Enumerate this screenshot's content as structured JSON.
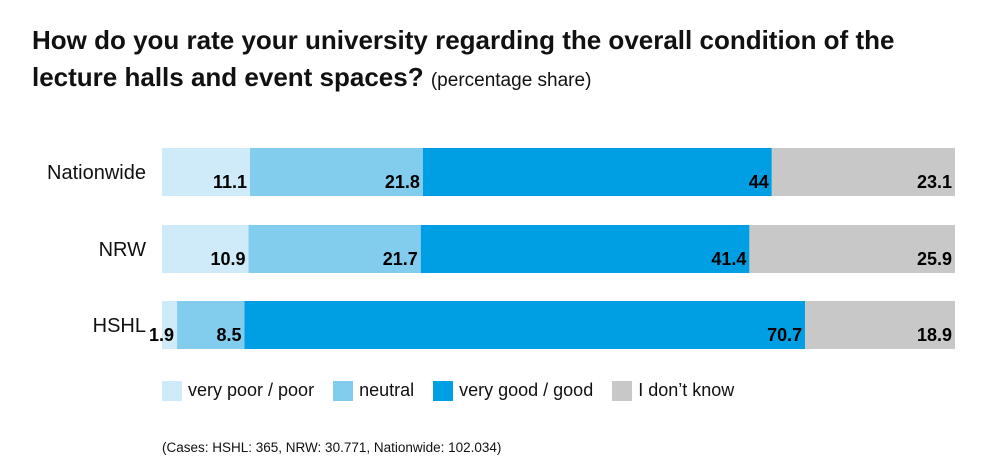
{
  "title": {
    "main": "How do you rate your university regarding the overall condition of the lecture halls and event spaces?",
    "sub": "(percentage share)"
  },
  "footnote": "(Cases: HSHL: 365, NRW: 30.771, Nationwide: 102.034)",
  "colors": {
    "very_poor_poor": "#cfeaf8",
    "neutral": "#82ccee",
    "very_good_good": "#009fe3",
    "dont_know": "#c8c8c8"
  },
  "chart_data": {
    "type": "bar",
    "orientation": "horizontal",
    "stacked": true,
    "categories": [
      "Nationwide",
      "NRW",
      "HSHL"
    ],
    "series": [
      {
        "name": "very poor / poor",
        "values": [
          11.1,
          10.9,
          1.9
        ],
        "labels": [
          "11.1",
          "10.9",
          "1.9"
        ]
      },
      {
        "name": "neutral",
        "values": [
          21.8,
          21.7,
          8.5
        ],
        "labels": [
          "21.8",
          "21.7",
          "8.5"
        ]
      },
      {
        "name": "very good / good",
        "values": [
          44,
          41.4,
          70.7
        ],
        "labels": [
          "44",
          "41.4",
          "70.7"
        ]
      },
      {
        "name": "I don’t know",
        "values": [
          23.1,
          25.9,
          18.9
        ],
        "labels": [
          "23.1",
          "25.9",
          "18.9"
        ]
      }
    ],
    "xlim": [
      0,
      100
    ],
    "grid": false,
    "legend_position": "bottom"
  }
}
